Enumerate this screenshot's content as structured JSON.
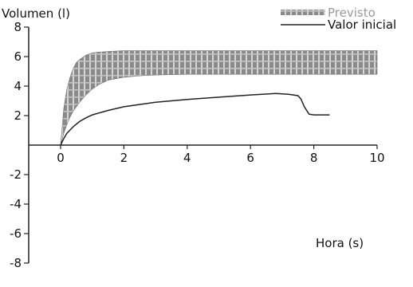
{
  "chart_data": {
    "type": "area",
    "ylabel": "Volumen (l)",
    "xlabel": "Hora (s)",
    "xlim": [
      0,
      10
    ],
    "ylim": [
      -8,
      8
    ],
    "x_ticks": [
      0,
      2,
      4,
      6,
      8,
      10
    ],
    "y_ticks": [
      -8,
      -6,
      -4,
      -2,
      2,
      4,
      6,
      8
    ],
    "grid": false,
    "legend_position": "top-right",
    "series": [
      {
        "name": "Previsto",
        "kind": "band",
        "color": "#6e6e6e",
        "x": [
          0,
          0.1,
          0.2,
          0.3,
          0.4,
          0.5,
          0.6,
          0.8,
          1.0,
          1.2,
          1.5,
          2.0,
          2.5,
          3.0,
          4.0,
          5.0,
          6.0,
          7.0,
          8.0,
          9.0,
          10.0
        ],
        "lower": [
          0,
          0.8,
          1.4,
          1.9,
          2.3,
          2.6,
          2.9,
          3.4,
          3.8,
          4.1,
          4.4,
          4.6,
          4.7,
          4.75,
          4.8,
          4.8,
          4.8,
          4.8,
          4.8,
          4.8,
          4.8
        ],
        "upper": [
          0,
          2.5,
          3.8,
          4.6,
          5.2,
          5.6,
          5.8,
          6.1,
          6.25,
          6.3,
          6.35,
          6.4,
          6.4,
          6.4,
          6.4,
          6.4,
          6.4,
          6.4,
          6.4,
          6.4,
          6.4
        ]
      },
      {
        "name": "Valor inicial",
        "kind": "line",
        "color": "#222222",
        "x": [
          0,
          0.1,
          0.2,
          0.4,
          0.6,
          0.8,
          1.0,
          1.5,
          2.0,
          3.0,
          4.0,
          5.0,
          6.0,
          6.8,
          7.2,
          7.5,
          7.6,
          7.7,
          7.85,
          8.0,
          8.5
        ],
        "y": [
          0,
          0.45,
          0.8,
          1.25,
          1.6,
          1.85,
          2.05,
          2.35,
          2.6,
          2.9,
          3.1,
          3.25,
          3.4,
          3.5,
          3.45,
          3.35,
          3.1,
          2.6,
          2.1,
          2.05,
          2.05
        ]
      }
    ]
  }
}
